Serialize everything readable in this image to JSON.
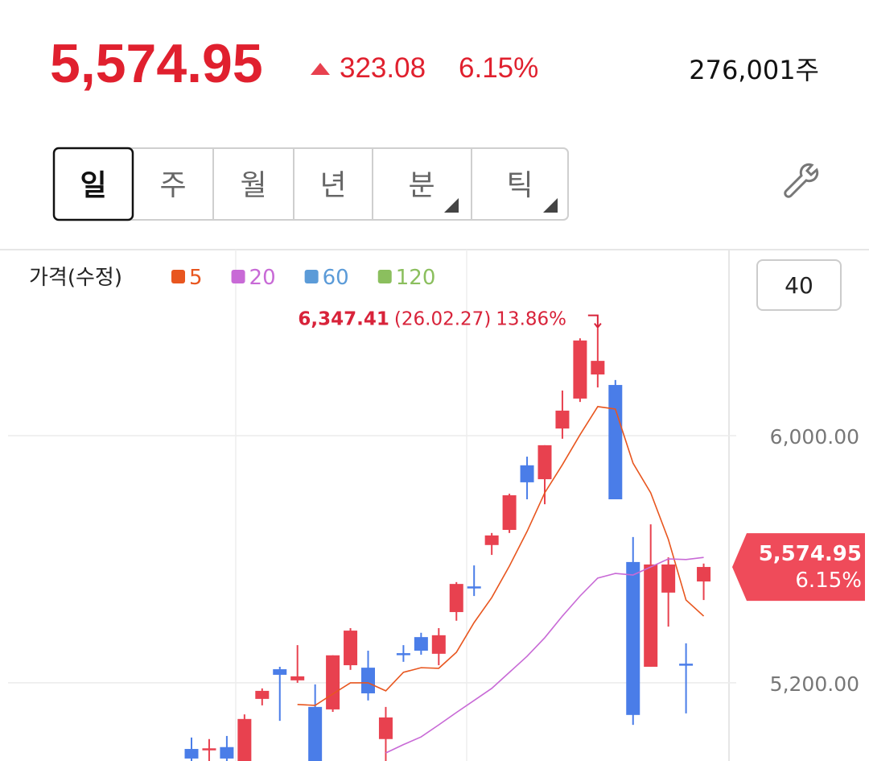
{
  "header": {
    "price": "5,574.95",
    "change": "323.08",
    "change_pct": "6.15%",
    "volume": "276,001주"
  },
  "tabs": [
    "일",
    "주",
    "월",
    "년",
    "분",
    "틱"
  ],
  "chart_data": {
    "type": "candlestick",
    "legend_title": "가격(수정)",
    "count_button": "40",
    "ylim": [
      4947,
      6602
    ],
    "yticks": [
      {
        "value": 5200,
        "label": "5,200.00"
      },
      {
        "value": 6000,
        "label": "6,000.00"
      }
    ],
    "grid": true,
    "up_color": "#e8414f",
    "down_color": "#4a7de8",
    "open": [
      4986,
      4984,
      4992,
      4930,
      5148,
      5244,
      5208,
      5122,
      5114,
      5257,
      5249,
      5018,
      5296,
      5348,
      5294,
      5429,
      5512,
      5646,
      5695,
      5904,
      5859,
      6023,
      6120,
      6198,
      6164,
      5591,
      5252,
      5492,
      5262,
      5528
    ],
    "high": [
      5023,
      5018,
      5028,
      5098,
      5182,
      5252,
      5322,
      5195,
      5289,
      5377,
      5304,
      5122,
      5322,
      5362,
      5377,
      5526,
      5580,
      5685,
      5812,
      5932,
      5969,
      6146,
      6315,
      6347.41,
      6180,
      5672,
      5713,
      5606,
      5328,
      5586
    ],
    "low": [
      4940,
      4940,
      4940,
      4920,
      5127,
      5077,
      5200,
      4920,
      5106,
      5242,
      5143,
      4930,
      5268,
      5291,
      5257,
      5401,
      5481,
      5614,
      5685,
      5794,
      5778,
      5990,
      6109,
      6156,
      5794,
      5064,
      5252,
      5382,
      5101,
      5468
    ],
    "close": [
      4955,
      4988,
      4955,
      5083,
      5174,
      5226,
      5221,
      4930,
      5289,
      5369,
      5166,
      5088,
      5294,
      5304,
      5354,
      5520,
      5510,
      5677,
      5807,
      5849,
      5969,
      6081,
      6308,
      6242,
      5794,
      5096,
      5583,
      5583,
      5260,
      5574.95
    ],
    "series": [
      {
        "name": "5",
        "color": "#e8561f",
        "values": [
          null,
          null,
          null,
          null,
          null,
          null,
          5130,
          5127,
          5164,
          5200,
          5200,
          5174,
          5234,
          5249,
          5247,
          5299,
          5395,
          5476,
          5578,
          5690,
          5815,
          5906,
          6003,
          6094,
          6086,
          5911,
          5815,
          5664,
          5468,
          5416
        ]
      },
      {
        "name": "20",
        "color": "#c86ad6",
        "values": [
          null,
          null,
          null,
          null,
          null,
          null,
          null,
          null,
          null,
          null,
          null,
          4973,
          5000,
          5025,
          5064,
          5104,
          5143,
          5182,
          5234,
          5286,
          5346,
          5416,
          5481,
          5539,
          5554,
          5549,
          5575,
          5601,
          5599,
          5606
        ]
      },
      {
        "name": "60",
        "color": "#5b9bd8",
        "values": [
          null,
          null,
          null,
          null,
          null,
          null,
          null,
          null,
          null,
          null,
          null,
          null,
          null,
          null,
          null,
          null,
          null,
          null,
          null,
          null,
          null,
          null,
          null,
          null,
          null,
          null,
          null,
          null,
          null,
          null
        ]
      },
      {
        "name": "120",
        "color": "#8bbf5e",
        "values": [
          null,
          null,
          null,
          null,
          null,
          null,
          null,
          null,
          null,
          null,
          null,
          null,
          null,
          null,
          null,
          null,
          null,
          null,
          null,
          null,
          null,
          null,
          null,
          null,
          null,
          null,
          null,
          null,
          null,
          null
        ]
      }
    ],
    "annotation": {
      "value": "6,347.41",
      "date": "(26.02.27)",
      "change_pct": "13.86%"
    },
    "last_price": {
      "label": "5,574.95",
      "change_pct": "6.15%"
    }
  }
}
